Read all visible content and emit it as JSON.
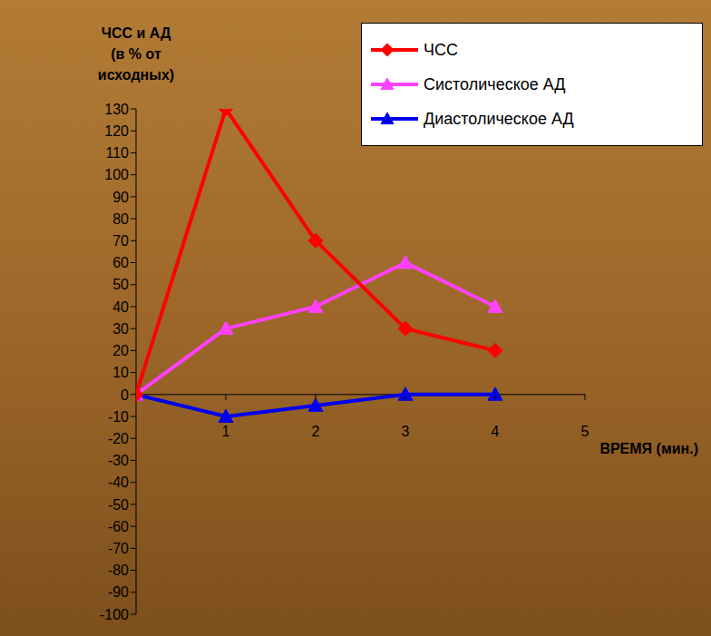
{
  "chart_data": {
    "type": "line",
    "x": [
      0,
      1,
      2,
      3,
      4
    ],
    "xlim": [
      0,
      5
    ],
    "xticks": [
      1,
      2,
      3,
      4,
      5
    ],
    "ylim": [
      -100,
      130
    ],
    "yticks": [
      -100,
      -90,
      -80,
      -70,
      -60,
      -50,
      -40,
      -30,
      -20,
      -10,
      0,
      10,
      20,
      30,
      40,
      50,
      60,
      70,
      80,
      90,
      100,
      110,
      120,
      130
    ],
    "x_label": "ВРЕМЯ (мин.)",
    "y_label": "ЧСС и АД (в % от исходных)",
    "legend": "top-right",
    "grid": false,
    "series": [
      {
        "name": "ЧСС",
        "color": "#ff0000",
        "marker": "diamond",
        "values": [
          0,
          130,
          70,
          30,
          20
        ]
      },
      {
        "name": "Систолическое АД",
        "color": "#ff40ff",
        "marker": "triangle",
        "values": [
          0,
          30,
          40,
          60,
          40
        ]
      },
      {
        "name": "Диастолическое АД",
        "color": "#0000ee",
        "marker": "triangle",
        "values": [
          0,
          -10,
          -5,
          0,
          0
        ]
      }
    ]
  }
}
